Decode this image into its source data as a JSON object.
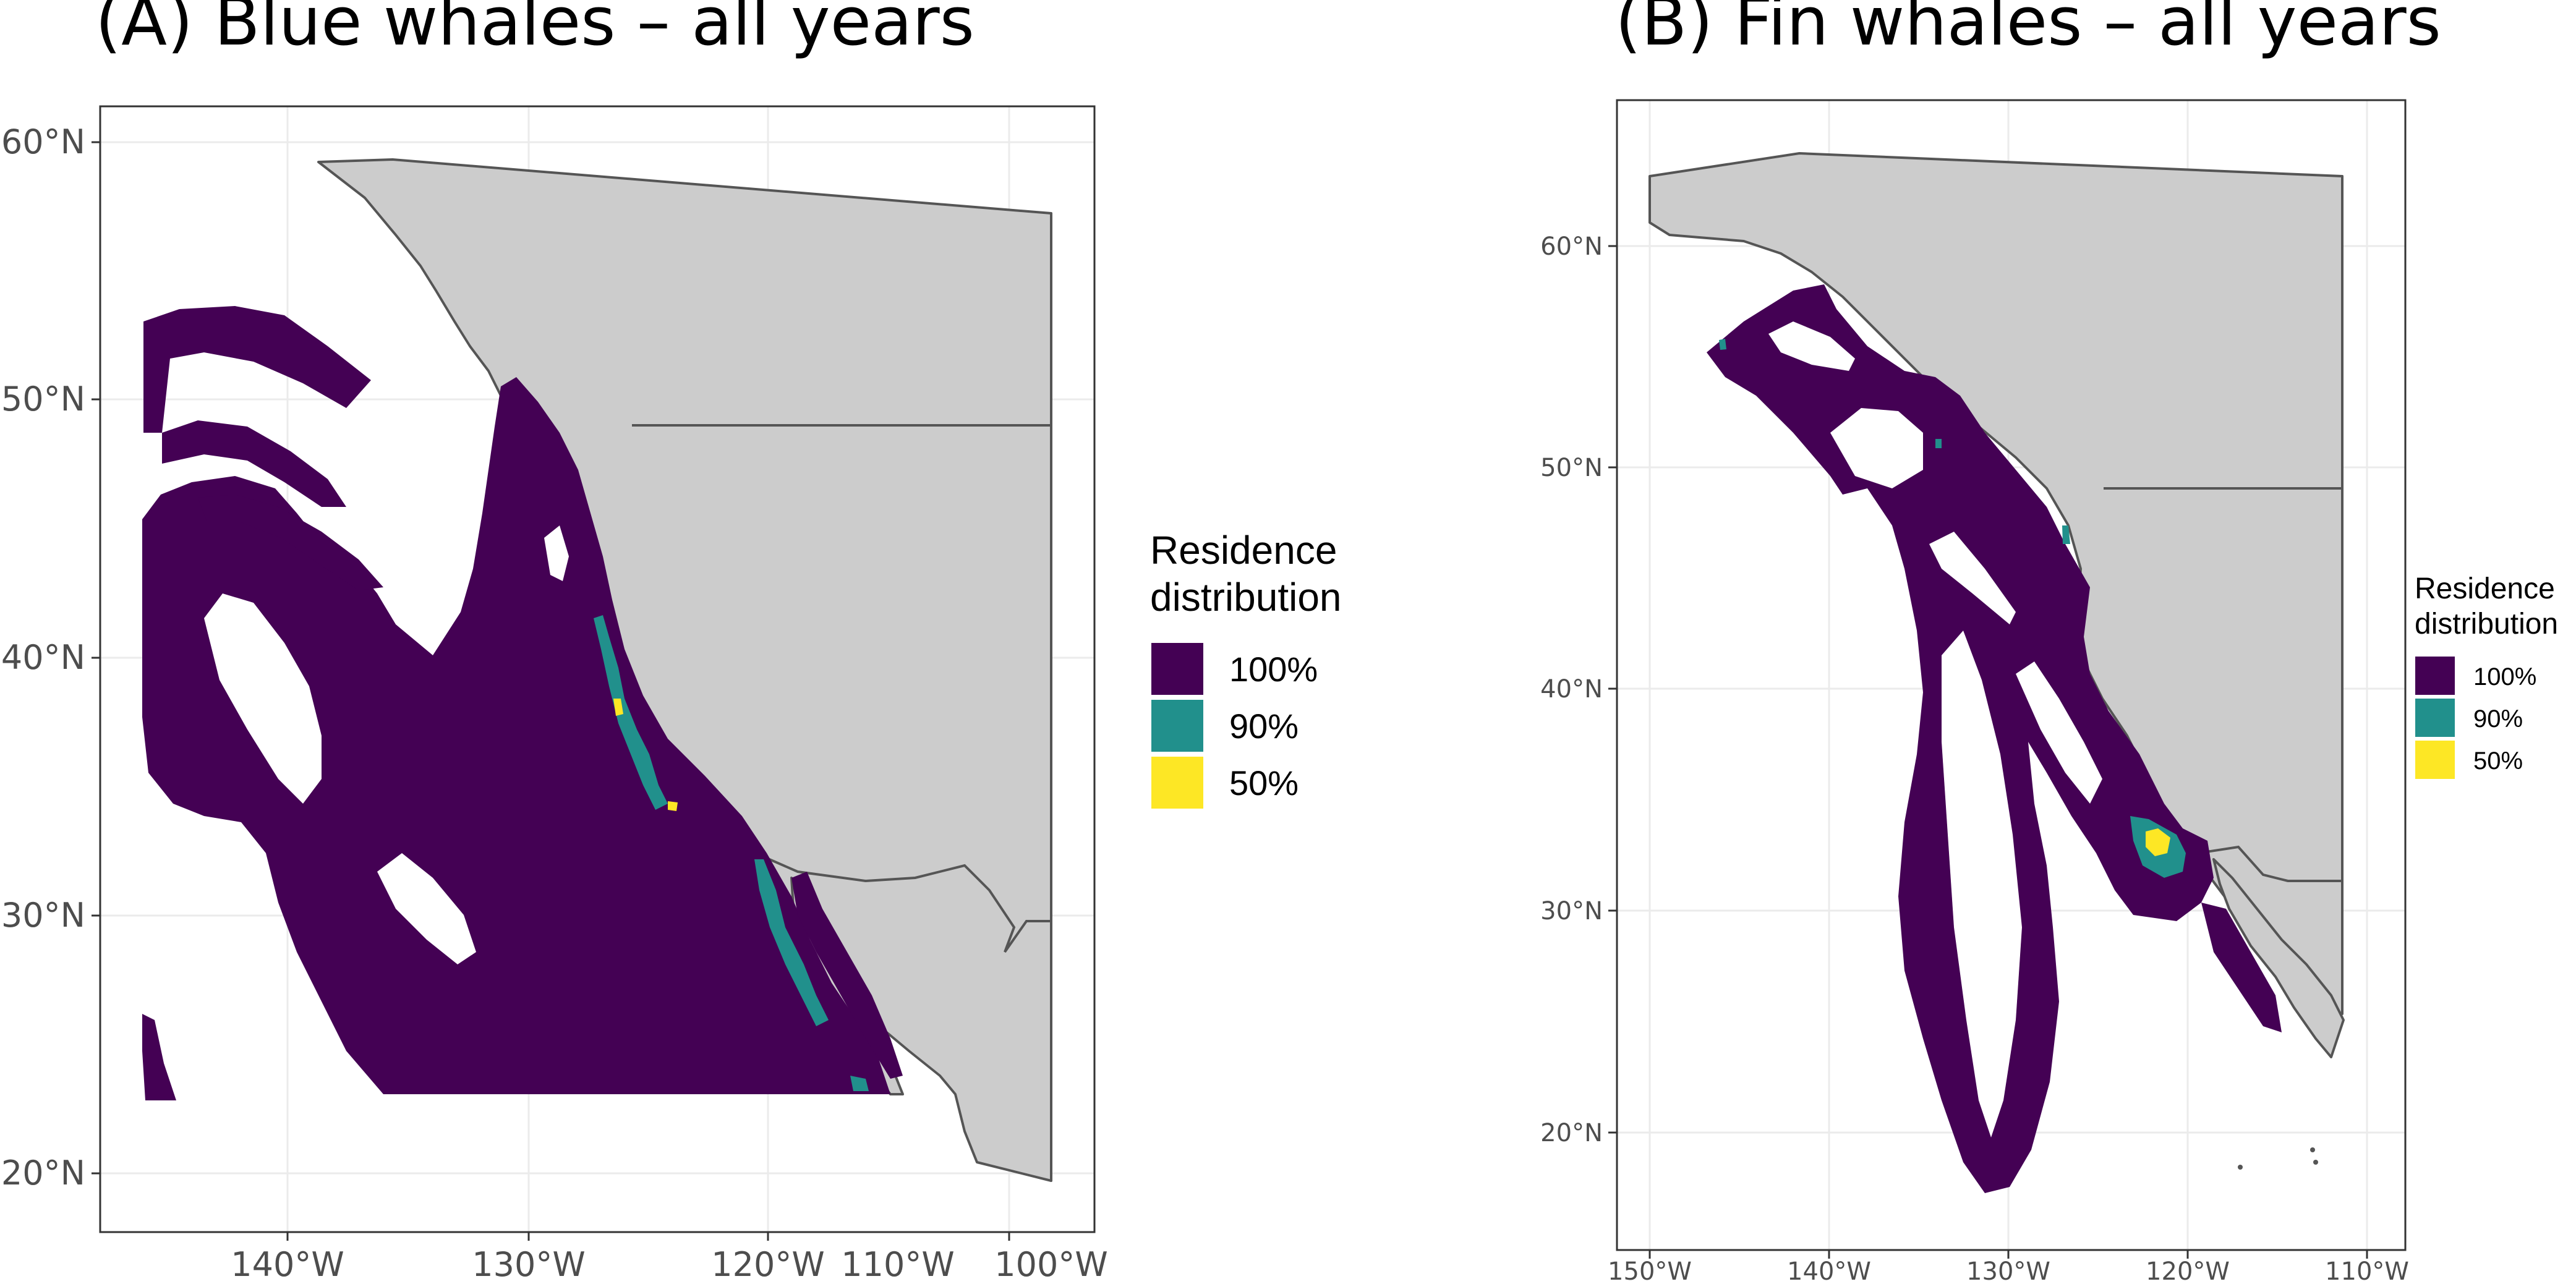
{
  "panels": [
    {
      "id": "A",
      "title": "(A) Blue whales – all years",
      "x_ticks": [
        "140°W",
        "130°W",
        "120°W",
        "110°W",
        "100°W"
      ],
      "y_ticks": [
        "60°N",
        "50°N",
        "40°N",
        "30°N",
        "20°N"
      ],
      "legend": {
        "title_line1": "Residence",
        "title_line2": "distribution",
        "items": [
          {
            "label": "100%",
            "color": "#440154"
          },
          {
            "label": "90%",
            "color": "#21908C"
          },
          {
            "label": "50%",
            "color": "#FDE725"
          }
        ]
      }
    },
    {
      "id": "B",
      "title": "(B) Fin whales – all years",
      "x_ticks": [
        "150°W",
        "140°W",
        "130°W",
        "120°W",
        "110°W"
      ],
      "y_ticks": [
        "60°N",
        "50°N",
        "40°N",
        "30°N",
        "20°N"
      ],
      "legend": {
        "title_line1": "Residence",
        "title_line2": "distribution",
        "items": [
          {
            "label": "100%",
            "color": "#440154"
          },
          {
            "label": "90%",
            "color": "#21908C"
          },
          {
            "label": "50%",
            "color": "#FDE725"
          }
        ]
      }
    }
  ],
  "colors": {
    "land": "#cccccc",
    "residence_100": "#440154",
    "residence_90": "#21908C",
    "residence_50": "#FDE725"
  }
}
